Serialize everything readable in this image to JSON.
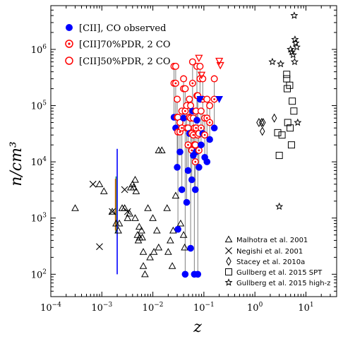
{
  "chart_data": {
    "type": "scatter",
    "xlabel": "z",
    "ylabel": "n/cm³",
    "xscale": "log",
    "yscale": "log",
    "xlim": [
      0.0001,
      40
    ],
    "ylim": [
      40,
      6000000
    ],
    "x_ticks": [
      {
        "value": 0.0001,
        "base": "10",
        "exp": "−4"
      },
      {
        "value": 0.001,
        "base": "10",
        "exp": "−3"
      },
      {
        "value": 0.01,
        "base": "10",
        "exp": "−2"
      },
      {
        "value": 0.1,
        "base": "10",
        "exp": "−1"
      },
      {
        "value": 1,
        "base": "10",
        "exp": "0"
      },
      {
        "value": 10,
        "base": "10",
        "exp": "1"
      }
    ],
    "y_ticks": [
      {
        "value": 100,
        "base": "10",
        "exp": "2"
      },
      {
        "value": 1000,
        "base": "10",
        "exp": "3"
      },
      {
        "value": 10000,
        "base": "10",
        "exp": "4"
      },
      {
        "value": 100000,
        "base": "10",
        "exp": "5"
      },
      {
        "value": 1000000,
        "base": "10",
        "exp": "6"
      }
    ],
    "legend_top": [
      {
        "label": "[CII], CO observed",
        "marker": "filled-circle",
        "color": "#0000ff"
      },
      {
        "label": "[CII]70%PDR, 2 CO",
        "marker": "dotted-circle",
        "color": "#ff0000"
      },
      {
        "label": "[CII]50%PDR, 2 CO",
        "marker": "open-circle",
        "color": "#ff0000"
      }
    ],
    "legend_bottom": [
      {
        "label": "Malhotra et al. 2001",
        "marker": "triangle"
      },
      {
        "label": "Negishi et al. 2001",
        "marker": "cross"
      },
      {
        "label": "Stacey et al. 2010a",
        "marker": "diamond"
      },
      {
        "label": "Gullberg et al. 2015 SPT",
        "marker": "square"
      },
      {
        "label": "Gullberg et al. 2015 high-z",
        "marker": "star"
      }
    ],
    "vertical_bars": [
      {
        "x": 0.002,
        "y1": 100,
        "y2": 17000,
        "color": "#0000ff"
      },
      {
        "x": 0.0019,
        "y1": 550,
        "y2": 5500,
        "color": "#2e8b57"
      },
      {
        "x": 0.00185,
        "y1": 600,
        "y2": 5000,
        "color": "#cc6600"
      }
    ],
    "series": [
      {
        "name": "Malhotra et al. 2001",
        "marker": "triangle",
        "points": [
          [
            0.0003,
            1500
          ],
          [
            0.0009,
            4000
          ],
          [
            0.0011,
            3000
          ],
          [
            0.0016,
            1300
          ],
          [
            0.0019,
            800
          ],
          [
            0.0021,
            600
          ],
          [
            0.0022,
            800
          ],
          [
            0.0025,
            1500
          ],
          [
            0.0028,
            1500
          ],
          [
            0.0032,
            1000
          ],
          [
            0.0035,
            1200
          ],
          [
            0.0037,
            3500
          ],
          [
            0.004,
            4000
          ],
          [
            0.0042,
            3500
          ],
          [
            0.0045,
            1000
          ],
          [
            0.0045,
            4800
          ],
          [
            0.0047,
            3000
          ],
          [
            0.005,
            500
          ],
          [
            0.0052,
            400
          ],
          [
            0.0054,
            700
          ],
          [
            0.0055,
            450
          ],
          [
            0.006,
            600
          ],
          [
            0.0062,
            450
          ],
          [
            0.0065,
            250
          ],
          [
            0.0065,
            140
          ],
          [
            0.007,
            100
          ],
          [
            0.008,
            1500
          ],
          [
            0.0088,
            200
          ],
          [
            0.01,
            1000
          ],
          [
            0.0105,
            250
          ],
          [
            0.012,
            600
          ],
          [
            0.013,
            300
          ],
          [
            0.013,
            16000
          ],
          [
            0.015,
            16000
          ],
          [
            0.019,
            1500
          ],
          [
            0.02,
            250
          ],
          [
            0.022,
            400
          ],
          [
            0.024,
            140
          ],
          [
            0.025,
            600
          ],
          [
            0.028,
            2500
          ],
          [
            0.035,
            800
          ],
          [
            0.04,
            500
          ],
          [
            0.042,
            300
          ]
        ]
      },
      {
        "name": "Negishi et al. 2001",
        "marker": "cross",
        "points": [
          [
            0.00067,
            4000
          ],
          [
            0.0009,
            310
          ],
          [
            0.0016,
            1300
          ],
          [
            0.0028,
            3200
          ],
          [
            0.0032,
            1300
          ]
        ]
      },
      {
        "name": "Stacey et al. 2010a",
        "marker": "diamond",
        "points": [
          [
            1.2,
            50000
          ],
          [
            1.35,
            50000
          ],
          [
            1.4,
            35000
          ],
          [
            1.45,
            50000
          ],
          [
            2.4,
            60000
          ]
        ]
      },
      {
        "name": "Gullberg et al. 2015 SPT",
        "marker": "square",
        "points": [
          [
            2.8,
            33000
          ],
          [
            3.0,
            13000
          ],
          [
            3.4,
            30000
          ],
          [
            4.2,
            300000
          ],
          [
            4.2,
            360000
          ],
          [
            4.3,
            200000
          ],
          [
            4.4,
            50000
          ],
          [
            4.8,
            230000
          ],
          [
            4.9,
            40000
          ],
          [
            5.2,
            20000
          ],
          [
            5.4,
            120000
          ],
          [
            5.8,
            80000
          ]
        ]
      },
      {
        "name": "Gullberg et al. 2015 high-z",
        "marker": "star",
        "points": [
          [
            2.2,
            600000
          ],
          [
            3.0,
            1600
          ],
          [
            3.2,
            550000
          ],
          [
            5.0,
            1000000
          ],
          [
            5.3,
            900000
          ],
          [
            5.6,
            800000
          ],
          [
            5.9,
            4000000
          ],
          [
            6.0,
            600000
          ],
          [
            6.1,
            1500000
          ],
          [
            6.3,
            1300000
          ],
          [
            6.6,
            1100000
          ],
          [
            6.9,
            50000
          ]
        ]
      }
    ],
    "paired_points": [
      {
        "x": 0.026,
        "obs": 62000,
        "p70": 250000,
        "p50": 500000
      },
      {
        "x": 0.028,
        "obs": 40000,
        "p70": 250000,
        "p50": 500000
      },
      {
        "x": 0.03,
        "obs": 8000,
        "p70": 62000,
        "p50": 130000
      },
      {
        "x": 0.031,
        "obs": 630,
        "p70": 34000,
        "p50": 62000
      },
      {
        "x": 0.034,
        "obs": 15000,
        "p70": 34000,
        "p50": 50000
      },
      {
        "x": 0.037,
        "obs": 3200,
        "p70": 40000,
        "p50": 80000
      },
      {
        "x": 0.04,
        "obs": 60000,
        "p70": 200000,
        "p50": 300000
      },
      {
        "x": 0.043,
        "obs": 100,
        "p70": 80000,
        "p50": 200000
      },
      {
        "x": 0.046,
        "obs": 1900,
        "p70": 40000,
        "p50": 100000
      },
      {
        "x": 0.049,
        "obs": 7000,
        "p70": 20000,
        "p50": 40000
      },
      {
        "x": 0.052,
        "obs": 32000,
        "p70": 62000,
        "p50": 130000
      },
      {
        "x": 0.055,
        "obs": 290,
        "p70": 60000,
        "p50": 100000
      },
      {
        "x": 0.058,
        "obs": 4800,
        "p70": 16000,
        "p50": 32000
      },
      {
        "x": 0.06,
        "obs": 80000,
        "p70": 250000,
        "p50": 600000
      },
      {
        "x": 0.062,
        "obs": 13000,
        "p70": 30000,
        "p50": 60000
      },
      {
        "x": 0.065,
        "obs": 100,
        "p70": 20000,
        "p50": 40000
      },
      {
        "x": 0.068,
        "obs": 3200,
        "p70": 10000,
        "p50": 20000
      },
      {
        "x": 0.07,
        "obs": 15000,
        "p70": 40000,
        "p50": 80000
      },
      {
        "x": 0.073,
        "obs": 55000,
        "p70": 150000,
        "p50": 500000
      },
      {
        "x": 0.076,
        "obs": 100,
        "p70": 30000,
        "p50": 150000
      },
      {
        "x": 0.08,
        "obs": 8000,
        "p70": 16000,
        "p50": 32000
      },
      {
        "x": 0.084,
        "obs": 130000,
        "p70": 300000,
        "p50": 500000
      },
      {
        "x": 0.088,
        "obs": 20000,
        "p70": 40000,
        "p50": 80000
      },
      {
        "x": 0.095,
        "obs": 32000,
        "p70": 130000,
        "p50": 300000
      },
      {
        "x": 0.104,
        "obs": 12000,
        "p70": 30000,
        "p50": 60000
      },
      {
        "x": 0.115,
        "obs": 10000,
        "p70": 60000,
        "p50": 130000
      },
      {
        "x": 0.13,
        "obs": 25000,
        "p70": 50000,
        "p50": 100000
      },
      {
        "x": 0.16,
        "obs": 40000,
        "p70": 130000,
        "p50": 300000
      }
    ],
    "upper_limits_red": [
      [
        0.08,
        700000
      ],
      [
        0.09,
        350000
      ],
      [
        0.2,
        620000
      ],
      [
        0.21,
        520000
      ]
    ],
    "upper_limits_blue": [
      [
        0.085,
        130000
      ],
      [
        0.2,
        130000
      ]
    ]
  }
}
